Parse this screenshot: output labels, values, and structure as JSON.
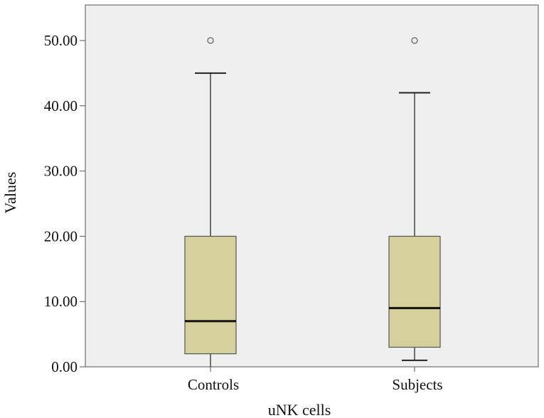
{
  "chart_data": {
    "type": "boxplot",
    "xlabel": "uNK cells",
    "ylabel": "Values",
    "ylim": [
      0,
      55
    ],
    "y_ticks": [
      {
        "value": 0,
        "label": "0.00"
      },
      {
        "value": 10,
        "label": "10.00"
      },
      {
        "value": 20,
        "label": "20.00"
      },
      {
        "value": 30,
        "label": "30.00"
      },
      {
        "value": 40,
        "label": "40.00"
      },
      {
        "value": 50,
        "label": "50.00"
      }
    ],
    "categories": [
      "Controls",
      "Subjects"
    ],
    "boxes": [
      {
        "name": "Controls",
        "min": 0,
        "q1": 2,
        "median": 7,
        "q3": 20,
        "max": 45,
        "outliers": [
          50
        ]
      },
      {
        "name": "Subjects",
        "min": 1,
        "q1": 3,
        "median": 9,
        "q3": 20,
        "max": 42,
        "outliers": [
          50
        ]
      }
    ],
    "colors": {
      "plot_background": "#efefef",
      "box_fill": "#d6d09c",
      "box_stroke": "#555555",
      "median": "#111111",
      "whisker": "#444444",
      "outlier": "#777777"
    }
  }
}
